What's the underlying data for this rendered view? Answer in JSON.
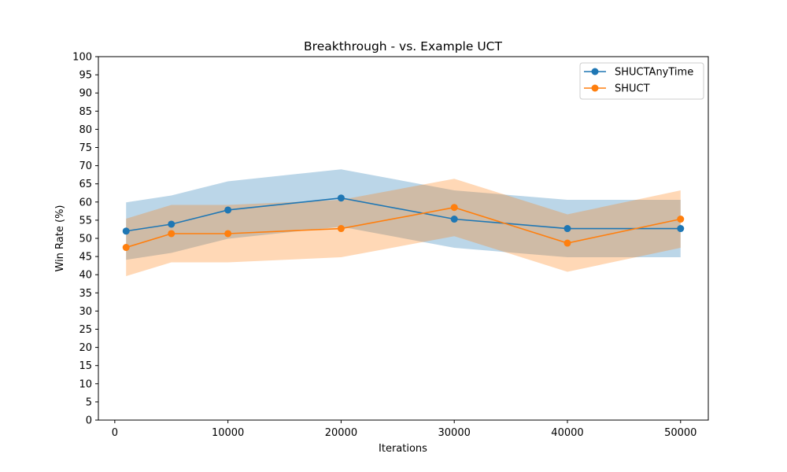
{
  "chart_data": {
    "type": "line",
    "title": "Breakthrough - vs. Example UCT",
    "xlabel": "Iterations",
    "ylabel": "Win Rate (%)",
    "x": [
      1000,
      5000,
      10000,
      20000,
      30000,
      40000,
      50000
    ],
    "xlim": [
      -1450,
      52450
    ],
    "ylim": [
      0,
      100
    ],
    "xticks": [
      0,
      10000,
      20000,
      30000,
      40000,
      50000
    ],
    "xtick_labels": [
      "0",
      "10000",
      "20000",
      "30000",
      "40000",
      "50000"
    ],
    "yticks": [
      0,
      5,
      10,
      15,
      20,
      25,
      30,
      35,
      40,
      45,
      50,
      55,
      60,
      65,
      70,
      75,
      80,
      85,
      90,
      95,
      100
    ],
    "ytick_labels": [
      "0",
      "5",
      "10",
      "15",
      "20",
      "25",
      "30",
      "35",
      "40",
      "45",
      "50",
      "55",
      "60",
      "65",
      "70",
      "75",
      "80",
      "85",
      "90",
      "95",
      "100"
    ],
    "grid": false,
    "legend_position": "top-right",
    "series": [
      {
        "name": "SHUCTAnyTime",
        "color": "#1f77b4",
        "band_color": "#1f77b4",
        "values": [
          52.0,
          53.9,
          57.8,
          61.1,
          55.3,
          52.7,
          52.7
        ],
        "lower": [
          44.1,
          46.0,
          49.9,
          53.2,
          47.4,
          44.8,
          44.8
        ],
        "upper": [
          59.9,
          61.8,
          65.7,
          69.0,
          63.2,
          60.6,
          60.6
        ]
      },
      {
        "name": "SHUCT",
        "color": "#ff7f0e",
        "band_color": "#ff7f0e",
        "values": [
          47.5,
          51.3,
          51.3,
          52.7,
          58.5,
          48.7,
          55.3
        ],
        "lower": [
          39.6,
          43.4,
          43.4,
          44.8,
          50.6,
          40.8,
          47.4
        ],
        "upper": [
          55.4,
          59.2,
          59.2,
          60.6,
          66.4,
          56.6,
          63.2
        ]
      }
    ]
  }
}
